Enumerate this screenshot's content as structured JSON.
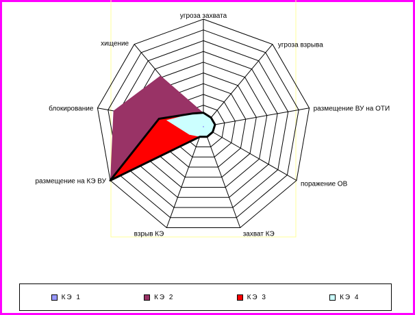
{
  "colors": {
    "frame": "#ff00ff",
    "plot_border": "#ffff99"
  },
  "chart_data": {
    "type": "radar",
    "axes": [
      "угроза захвата",
      "угроза взрыва",
      "размещение ВУ на ОТИ",
      "поражение ОВ",
      "захват КЭ",
      "взрыв КЭ",
      "размещение на КЭ ВУ",
      "блокирование",
      "хищение"
    ],
    "rings": 10,
    "rmax": 10,
    "grid": true,
    "legend_position": "bottom",
    "series": [
      {
        "name": "КЭ 1",
        "color": "#9999ff",
        "values": [
          0,
          0,
          0,
          0,
          0,
          0,
          0,
          0,
          0
        ]
      },
      {
        "name": "КЭ 2",
        "color": "#993366",
        "values": [
          1.3,
          1.1,
          1.1,
          1.0,
          1.0,
          1.0,
          10,
          8.5,
          6.2
        ]
      },
      {
        "name": "КЭ 3",
        "color": "#ff0000",
        "values": [
          1.3,
          1.1,
          1.1,
          1.0,
          1.0,
          1.0,
          10,
          4.2,
          1.6
        ]
      },
      {
        "name": "КЭ 4",
        "color": "#ccffff",
        "values": [
          1.3,
          1.1,
          1.1,
          1.0,
          1.0,
          1.0,
          1.5,
          3.5,
          1.6
        ]
      }
    ]
  }
}
